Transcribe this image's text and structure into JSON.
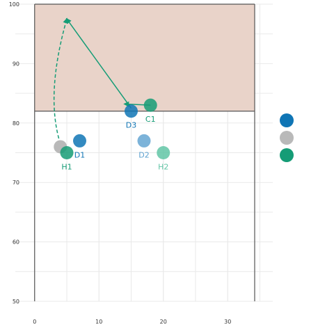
{
  "chart_data": {
    "type": "scatter",
    "xlim": [
      -3,
      37
    ],
    "ylim": [
      50,
      100
    ],
    "x_ticks": [
      0,
      10,
      20,
      30
    ],
    "y_ticks": [
      50,
      60,
      70,
      80,
      90,
      100
    ],
    "x_tick_labels": [
      "0",
      "10",
      "20",
      "30"
    ],
    "y_tick_labels": [
      "50",
      "60",
      "70",
      "80",
      "90",
      "100"
    ],
    "shaded_band": {
      "x_from": 0,
      "x_to": 37,
      "y_from": 82,
      "y_to": 100,
      "color": "#e9d3c9"
    },
    "threshold_line": {
      "y": 82,
      "x_from": 0,
      "x_to": 37
    },
    "points": [
      {
        "label": "D1",
        "x": 7,
        "y": 77,
        "color": "#0f75b5",
        "opacity": 0.85,
        "label_color": "#0f75b5",
        "label_pos": "below"
      },
      {
        "label": "",
        "x": 4,
        "y": 76,
        "color": "#b9b9b9",
        "opacity": 1.0,
        "label_color": "",
        "label_pos": "none"
      },
      {
        "label": "H1",
        "x": 5,
        "y": 75,
        "color": "#159c76",
        "opacity": 0.85,
        "label_color": "#159c76",
        "label_pos": "below"
      },
      {
        "label": "D3",
        "x": 15,
        "y": 82,
        "color": "#0f75b5",
        "opacity": 0.85,
        "label_color": "#0f75b5",
        "label_pos": "below"
      },
      {
        "label": "C1",
        "x": 18,
        "y": 83,
        "color": "#159c76",
        "opacity": 0.85,
        "label_color": "#159c76",
        "label_pos": "below"
      },
      {
        "label": "D2",
        "x": 17,
        "y": 77,
        "color": "#5ba0d0",
        "opacity": 0.8,
        "label_color": "#5ba0d0",
        "label_pos": "below"
      },
      {
        "label": "H2",
        "x": 20,
        "y": 75,
        "color": "#62c6a6",
        "opacity": 0.85,
        "label_color": "#62c6a6",
        "label_pos": "below"
      }
    ],
    "arrows": [
      {
        "from": [
          18,
          83
        ],
        "to": [
          14,
          83.2
        ],
        "style": "solid",
        "color": "#159c76"
      },
      {
        "from": [
          15,
          82.5
        ],
        "to": [
          5,
          97.5
        ],
        "style": "solid",
        "color": "#159c76"
      },
      {
        "from": [
          4,
          76.5
        ],
        "to": [
          5,
          97.5
        ],
        "style": "dashed",
        "color": "#159c76",
        "curved": true
      }
    ],
    "legend": {
      "position": "right",
      "items": [
        {
          "color": "#0f75b5"
        },
        {
          "color": "#b9b9b9"
        },
        {
          "color": "#159c76"
        }
      ]
    }
  }
}
